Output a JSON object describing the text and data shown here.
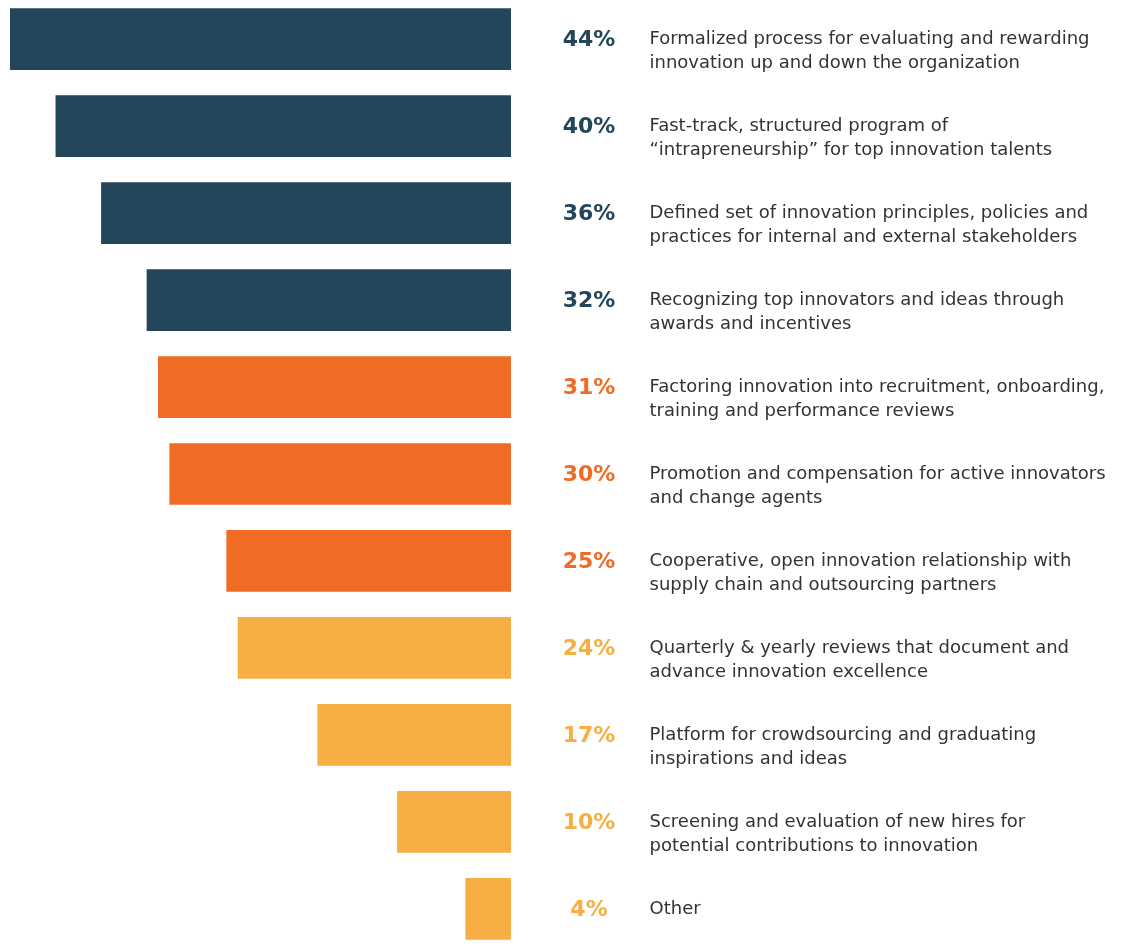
{
  "chart_data": {
    "type": "bar",
    "orientation": "horizontal",
    "categories": [
      "Formalized process for evaluating and rewarding innovation up and down the organization",
      "Fast-track, structured program of “intrapreneurship” for top innovation talents",
      "Defined set of innovation principles, policies and practices for internal and external stakeholders",
      "Recognizing top innovators and ideas through awards and incentives",
      "Factoring innovation into recruitment, onboarding, training and performance reviews",
      "Promotion and compensation for active innovators and change agents",
      "Cooperative, open innovation relationship with supply chain and outsourcing partners",
      "Quarterly & yearly reviews that document and advance innovation excellence",
      "Platform for crowdsourcing and graduating inspirations and ideas",
      "Screening and evaluation of new hires for potential contributions to innovation",
      "Other"
    ],
    "values": [
      44,
      40,
      36,
      32,
      31,
      30,
      25,
      24,
      17,
      10,
      4
    ],
    "value_labels": [
      "44%",
      "40%",
      "36%",
      "32%",
      "31%",
      "30%",
      "25%",
      "24%",
      "17%",
      "10%",
      "4%"
    ],
    "colors": [
      "#23465b",
      "#23465b",
      "#23465b",
      "#23465b",
      "#f06c25",
      "#f06c25",
      "#f06c25",
      "#f6ae45",
      "#f6ae45",
      "#f6ae45",
      "#f6ae45"
    ],
    "xlim": [
      44,
      0
    ],
    "tick_labels": "y",
    "grid": false,
    "legend": false
  }
}
